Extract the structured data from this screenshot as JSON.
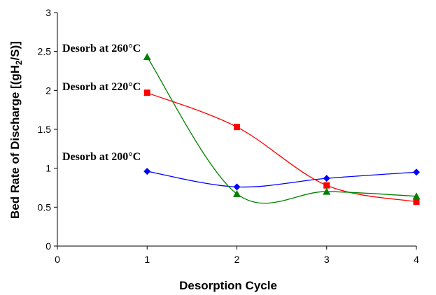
{
  "chart_data": {
    "type": "line",
    "xlabel": "Desorption Cycle",
    "ylabel": "Bed Rate of Discharge [(gH",
    "ylabel_sub": "2",
    "ylabel_end": "/S)]",
    "xlim": [
      0,
      4
    ],
    "ylim": [
      0,
      3
    ],
    "x_ticks": [
      "0",
      "1",
      "2",
      "3",
      "4"
    ],
    "y_ticks": [
      "0",
      "0.5",
      "1",
      "1.5",
      "2",
      "2.5",
      "3"
    ],
    "grid": false,
    "legend": "none",
    "series": [
      {
        "name": "Desorb at 200°C",
        "color": "#0000ff",
        "marker": "diamond",
        "x": [
          1,
          2,
          3,
          4
        ],
        "y": [
          0.96,
          0.76,
          0.87,
          0.95
        ]
      },
      {
        "name": "Desorb at 220°C",
        "color": "#ff0000",
        "marker": "square",
        "x": [
          1,
          2,
          3,
          4
        ],
        "y": [
          1.97,
          1.53,
          0.78,
          0.57
        ]
      },
      {
        "name": "Desorb at 260°C",
        "color": "#008000",
        "marker": "triangle",
        "x": [
          1,
          2,
          3,
          4
        ],
        "y": [
          2.43,
          0.67,
          0.7,
          0.64
        ]
      }
    ]
  }
}
